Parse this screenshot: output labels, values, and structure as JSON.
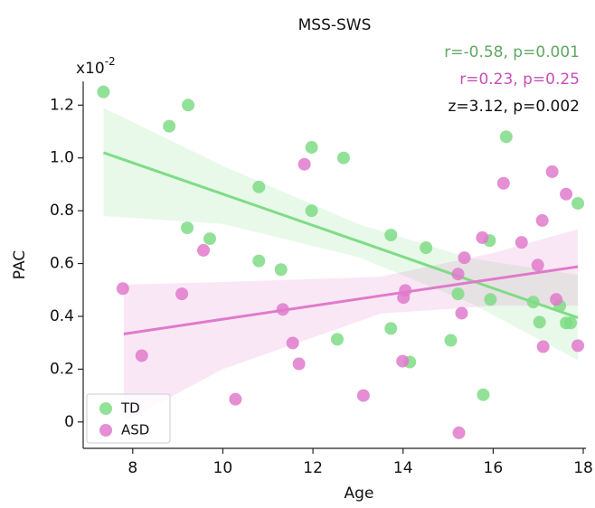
{
  "chart_data": {
    "type": "scatter",
    "title": "MSS-SWS",
    "x_label": "Age",
    "y_label": "PAC",
    "offset_text": {
      "base": "x10",
      "exponent": "-2"
    },
    "annotations": [
      {
        "text": "r=-0.58, p=0.001",
        "color": "#5fa863"
      },
      {
        "text": "r=0.23, p=0.25",
        "color": "#c84fb3"
      },
      {
        "text": "z=3.12, p=0.002",
        "color": "#111111"
      }
    ],
    "xlim": [
      6.9,
      18.06
    ],
    "ylim": [
      -0.1,
      1.29
    ],
    "xticks": [
      8,
      10,
      12,
      14,
      16,
      18
    ],
    "yticks": [
      0,
      0.2,
      0.4,
      0.6,
      0.8,
      {
        "value": 1,
        "label": "1.0"
      },
      1.2
    ],
    "legend": "lower left",
    "series": [
      {
        "name": "TD",
        "color": "#7fdc86",
        "x": [
          7.35,
          8.81,
          9.23,
          9.21,
          9.71,
          10.8,
          10.8,
          11.29,
          11.97,
          11.97,
          12.68,
          12.54,
          13.73,
          13.73,
          14.51,
          14.15,
          15.06,
          15.22,
          15.78,
          15.92,
          15.94,
          16.29,
          16.89,
          17.03,
          17.48,
          17.62,
          17.72,
          17.88
        ],
        "values": [
          1.25,
          1.12,
          1.2,
          0.735,
          0.694,
          0.89,
          0.61,
          0.577,
          1.04,
          0.8,
          1.0,
          0.313,
          0.708,
          0.354,
          0.66,
          0.227,
          0.309,
          0.485,
          0.103,
          0.687,
          0.464,
          1.08,
          0.454,
          0.378,
          0.44,
          0.375,
          0.375,
          0.828
        ],
        "fit": {
          "x": [
            7.35,
            10,
            13,
            15.5,
            17.88
          ],
          "y": [
            1.02,
            0.863,
            0.685,
            0.536,
            0.395
          ],
          "lower": [
            0.78,
            0.75,
            0.625,
            0.45,
            0.234
          ],
          "upper": [
            1.19,
            0.97,
            0.75,
            0.62,
            0.557
          ]
        }
      },
      {
        "name": "ASD",
        "color": "#e07acb",
        "x": [
          7.78,
          8.2,
          9.09,
          9.57,
          10.28,
          11.33,
          11.55,
          11.69,
          11.81,
          13.12,
          14.01,
          14.05,
          13.99,
          15.22,
          15.36,
          15.3,
          15.24,
          15.76,
          16.23,
          16.63,
          16.99,
          17.09,
          17.11,
          17.31,
          17.4,
          17.62,
          17.88
        ],
        "values": [
          0.505,
          0.251,
          0.485,
          0.65,
          0.086,
          0.426,
          0.299,
          0.22,
          0.976,
          0.1,
          0.471,
          0.498,
          0.23,
          0.56,
          0.622,
          0.412,
          -0.041,
          0.698,
          0.904,
          0.68,
          0.594,
          0.763,
          0.285,
          0.948,
          0.464,
          0.863,
          0.289
        ],
        "fit": {
          "x": [
            7.8,
            10,
            13.5,
            16,
            17.88
          ],
          "y": [
            0.333,
            0.389,
            0.478,
            0.541,
            0.588
          ],
          "lower": [
            0.0,
            0.2,
            0.41,
            0.44,
            0.44
          ],
          "upper": [
            0.52,
            0.53,
            0.55,
            0.64,
            0.73
          ]
        }
      }
    ]
  }
}
